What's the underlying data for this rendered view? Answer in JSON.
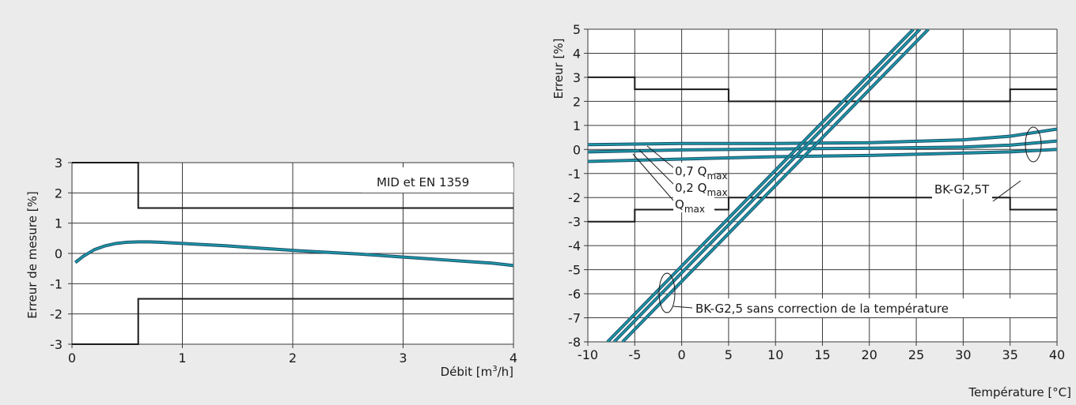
{
  "chart_data": [
    {
      "type": "line",
      "ylabel": "Erreur de mesure [%]",
      "xlabel": "Débit [m",
      "xlabel_sup": "3",
      "xlabel_tail": "/h]",
      "xlim": [
        0,
        4
      ],
      "ylim": [
        -3,
        3
      ],
      "xticks": [
        "0",
        "1",
        "2",
        "3",
        "4"
      ],
      "yticks": [
        "3",
        "2",
        "1",
        "0",
        "-1",
        "-2",
        "-3"
      ],
      "grid": true,
      "annotation": "MID et EN 1359",
      "limits": [
        {
          "x": [
            0,
            0.6,
            0.6,
            4
          ],
          "y": [
            3,
            3,
            1.5,
            1.5
          ]
        },
        {
          "x": [
            0,
            0.6,
            0.6,
            4
          ],
          "y": [
            -3,
            -3,
            -1.5,
            -1.5
          ]
        }
      ],
      "series": [
        {
          "color": "#1b9aa8",
          "x": [
            0.03,
            0.1,
            0.2,
            0.3,
            0.4,
            0.5,
            0.6,
            0.7,
            0.8,
            0.9,
            1.0,
            1.2,
            1.4,
            1.6,
            1.8,
            2.0,
            2.2,
            2.4,
            2.6,
            2.8,
            3.0,
            3.2,
            3.4,
            3.6,
            3.8,
            4.0
          ],
          "y": [
            -0.3,
            -0.1,
            0.12,
            0.25,
            0.33,
            0.37,
            0.38,
            0.38,
            0.37,
            0.35,
            0.33,
            0.29,
            0.25,
            0.2,
            0.15,
            0.1,
            0.06,
            0.02,
            -0.02,
            -0.07,
            -0.12,
            -0.17,
            -0.22,
            -0.27,
            -0.32,
            -0.4
          ]
        }
      ]
    },
    {
      "type": "line",
      "ylabel": "Erreur [%]",
      "xlabel": "Température [°C]",
      "xlim": [
        -10,
        40
      ],
      "ylim": [
        -8,
        5
      ],
      "xticks": [
        "-10",
        "-5",
        "0",
        "5",
        "10",
        "15",
        "20",
        "25",
        "30",
        "35",
        "40"
      ],
      "yticks": [
        "5",
        "4",
        "3",
        "2",
        "1",
        "0",
        "-1",
        "-2",
        "-3",
        "-4",
        "-5",
        "-6",
        "-7",
        "-8"
      ],
      "grid": true,
      "limits": [
        {
          "x": [
            -10,
            -5,
            -5,
            5,
            5,
            35,
            35,
            40
          ],
          "y": [
            3,
            3,
            2.5,
            2.5,
            2,
            2,
            2.5,
            2.5
          ]
        },
        {
          "x": [
            -10,
            -5,
            -5,
            5,
            5,
            35,
            35,
            40
          ],
          "y": [
            -3,
            -3,
            -2.5,
            -2.5,
            -2,
            -2,
            -2.5,
            -2.5
          ]
        }
      ],
      "series": [
        {
          "color": "#1b9aa8",
          "x": [
            -10,
            0,
            10,
            20,
            30,
            35,
            40
          ],
          "y": [
            0.2,
            0.25,
            0.25,
            0.28,
            0.4,
            0.55,
            0.85
          ]
        },
        {
          "color": "#1b9aa8",
          "x": [
            -10,
            0,
            10,
            20,
            30,
            35,
            40
          ],
          "y": [
            -0.1,
            -0.02,
            0.02,
            0.05,
            0.1,
            0.18,
            0.35
          ]
        },
        {
          "color": "#1b9aa8",
          "x": [
            -10,
            0,
            10,
            20,
            30,
            35,
            40
          ],
          "y": [
            -0.5,
            -0.4,
            -0.3,
            -0.25,
            -0.15,
            -0.1,
            0.0
          ]
        },
        {
          "color": "#1b9aa8",
          "x": [
            -7.9,
            24.7
          ],
          "y": [
            -8,
            5
          ]
        },
        {
          "color": "#1b9aa8",
          "x": [
            -7.2,
            25.4
          ],
          "y": [
            -8,
            5
          ]
        },
        {
          "color": "#1b9aa8",
          "x": [
            -6.3,
            26.3
          ],
          "y": [
            -8,
            5
          ]
        }
      ],
      "annotations": [
        {
          "text": "0,7 Q",
          "sub": "max",
          "ellipse": null
        },
        {
          "text": "0,2 Q",
          "sub": "max"
        },
        {
          "text": "Q",
          "sub": "max"
        },
        {
          "text": "BK-G2,5T"
        },
        {
          "text": "BK-G2,5 sans correction de la température"
        }
      ]
    }
  ]
}
